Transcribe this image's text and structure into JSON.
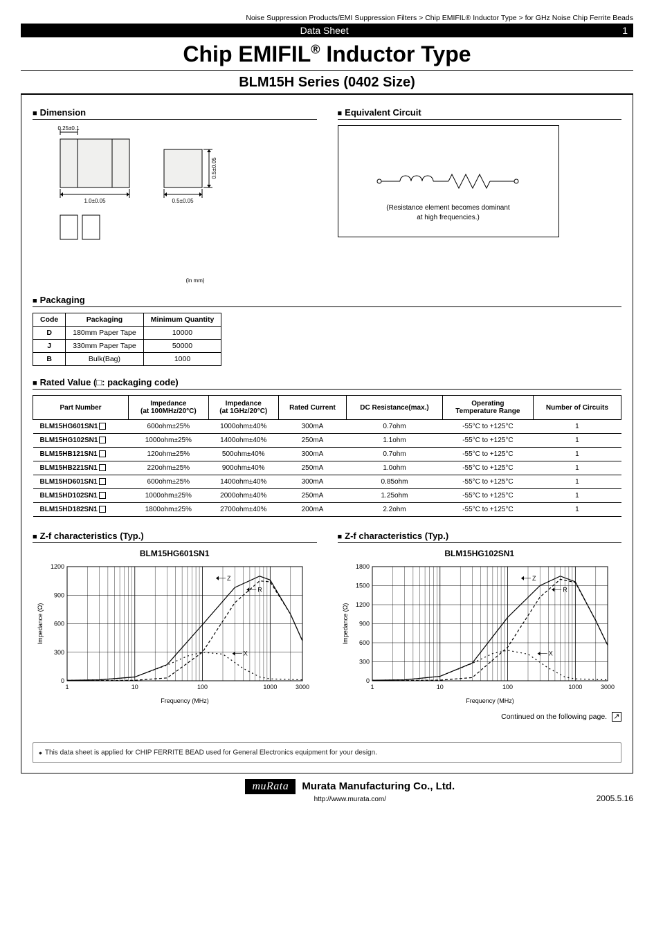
{
  "breadcrumb": "Noise Suppression Products/EMI Suppression Filters > Chip EMIFIL® Inductor Type > for GHz Noise Chip Ferrite Beads",
  "blackbar": {
    "center": "Data Sheet",
    "page": "1"
  },
  "title_before": "Chip EMIFIL",
  "title_reg": "®",
  "title_after": " Inductor Type",
  "subtitle": "BLM15H Series (0402 Size)",
  "sections": {
    "dimension": "Dimension",
    "equivalent": "Equivalent Circuit",
    "packaging": "Packaging",
    "rated": "Rated Value (□: packaging code)",
    "zf1": "Z-f characteristics (Typ.)",
    "zf2": "Z-f characteristics (Typ.)"
  },
  "dimension": {
    "top_w": "0.25±0.1",
    "main_w": "1.0±0.05",
    "side_w": "0.5±0.05",
    "side_h": "0.5±0.05",
    "unit": "(in mm)"
  },
  "equivalent": {
    "caption1": "(Resistance element becomes dominant",
    "caption2": "at high frequencies.)"
  },
  "packaging_table": {
    "columns": [
      "Code",
      "Packaging",
      "Minimum Quantity"
    ],
    "rows": [
      [
        "D",
        "180mm Paper Tape",
        "10000"
      ],
      [
        "J",
        "330mm Paper Tape",
        "50000"
      ],
      [
        "B",
        "Bulk(Bag)",
        "1000"
      ]
    ]
  },
  "rated_table": {
    "columns": [
      "Part Number",
      "Impedance\n(at 100MHz/20°C)",
      "Impedance\n(at 1GHz/20°C)",
      "Rated Current",
      "DC Resistance(max.)",
      "Operating\nTemperature Range",
      "Number of Circuits"
    ],
    "rows": [
      [
        "BLM15HG601SN1",
        "600ohm±25%",
        "1000ohm±40%",
        "300mA",
        "0.7ohm",
        "-55°C to +125°C",
        "1"
      ],
      [
        "BLM15HG102SN1",
        "1000ohm±25%",
        "1400ohm±40%",
        "250mA",
        "1.1ohm",
        "-55°C to +125°C",
        "1"
      ],
      [
        "BLM15HB121SN1",
        "120ohm±25%",
        "500ohm±40%",
        "300mA",
        "0.7ohm",
        "-55°C to +125°C",
        "1"
      ],
      [
        "BLM15HB221SN1",
        "220ohm±25%",
        "900ohm±40%",
        "250mA",
        "1.0ohm",
        "-55°C to +125°C",
        "1"
      ],
      [
        "BLM15HD601SN1",
        "600ohm±25%",
        "1400ohm±40%",
        "300mA",
        "0.85ohm",
        "-55°C to +125°C",
        "1"
      ],
      [
        "BLM15HD102SN1",
        "1000ohm±25%",
        "2000ohm±40%",
        "250mA",
        "1.25ohm",
        "-55°C to +125°C",
        "1"
      ],
      [
        "BLM15HD182SN1",
        "1800ohm±25%",
        "2700ohm±40%",
        "200mA",
        "2.2ohm",
        "-55°C to +125°C",
        "1"
      ]
    ]
  },
  "chart1": {
    "title": "BLM15HG601SN1",
    "type": "line-logx",
    "x_label": "Frequency (MHz)",
    "y_label": "Impedance (Ω)",
    "x_ticks": [
      1,
      10,
      100,
      1000,
      3000
    ],
    "y_ticks": [
      0,
      300,
      600,
      900,
      1200
    ],
    "ylim": [
      0,
      1200
    ],
    "xlim": [
      1,
      3000
    ],
    "series": {
      "Z": {
        "color": "#000000",
        "dash": "",
        "points": [
          [
            1,
            5
          ],
          [
            3,
            10
          ],
          [
            10,
            40
          ],
          [
            30,
            170
          ],
          [
            100,
            590
          ],
          [
            300,
            980
          ],
          [
            700,
            1100
          ],
          [
            1000,
            1060
          ],
          [
            2000,
            700
          ],
          [
            3000,
            420
          ]
        ]
      },
      "R": {
        "color": "#000000",
        "dash": "4,3",
        "points": [
          [
            1,
            1
          ],
          [
            10,
            5
          ],
          [
            30,
            30
          ],
          [
            100,
            300
          ],
          [
            300,
            820
          ],
          [
            700,
            1050
          ],
          [
            1000,
            1040
          ],
          [
            2000,
            700
          ],
          [
            3000,
            420
          ]
        ]
      },
      "X": {
        "color": "#000000",
        "dash": "2,4",
        "points": [
          [
            1,
            5
          ],
          [
            3,
            10
          ],
          [
            10,
            40
          ],
          [
            30,
            165
          ],
          [
            60,
            260
          ],
          [
            100,
            300
          ],
          [
            200,
            280
          ],
          [
            400,
            130
          ],
          [
            700,
            40
          ],
          [
            1000,
            20
          ],
          [
            3000,
            10
          ]
        ]
      }
    },
    "labels": {
      "Z": "Z",
      "R": "R",
      "X": "X"
    },
    "grid_color": "#000000",
    "background": "#ffffff",
    "axis_fontsize": 9
  },
  "chart2": {
    "title": "BLM15HG102SN1",
    "type": "line-logx",
    "x_label": "Frequency (MHz)",
    "y_label": "Impedance (Ω)",
    "x_ticks": [
      1,
      10,
      100,
      1000,
      3000
    ],
    "y_ticks": [
      0,
      300,
      600,
      900,
      1200,
      1500,
      1800
    ],
    "ylim": [
      0,
      1800
    ],
    "xlim": [
      1,
      3000
    ],
    "series": {
      "Z": {
        "color": "#000000",
        "dash": "",
        "points": [
          [
            1,
            8
          ],
          [
            3,
            15
          ],
          [
            10,
            70
          ],
          [
            30,
            280
          ],
          [
            100,
            1000
          ],
          [
            300,
            1500
          ],
          [
            600,
            1650
          ],
          [
            1000,
            1560
          ],
          [
            2000,
            950
          ],
          [
            3000,
            560
          ]
        ]
      },
      "R": {
        "color": "#000000",
        "dash": "4,3",
        "points": [
          [
            1,
            1
          ],
          [
            10,
            10
          ],
          [
            30,
            50
          ],
          [
            100,
            530
          ],
          [
            300,
            1320
          ],
          [
            600,
            1600
          ],
          [
            1000,
            1550
          ],
          [
            2000,
            950
          ],
          [
            3000,
            560
          ]
        ]
      },
      "X": {
        "color": "#000000",
        "dash": "2,4",
        "points": [
          [
            1,
            8
          ],
          [
            3,
            15
          ],
          [
            10,
            70
          ],
          [
            30,
            275
          ],
          [
            60,
            430
          ],
          [
            100,
            480
          ],
          [
            200,
            420
          ],
          [
            400,
            200
          ],
          [
            700,
            60
          ],
          [
            1000,
            30
          ],
          [
            3000,
            15
          ]
        ]
      }
    },
    "labels": {
      "Z": "Z",
      "R": "R",
      "X": "X"
    },
    "grid_color": "#000000",
    "background": "#ffffff",
    "axis_fontsize": 9
  },
  "continued": "Continued on the following page.",
  "footnote": "This data sheet is applied for CHIP FERRITE BEAD used for General Electronics equipment for your design.",
  "footer": {
    "logo_text": "muRata",
    "company": "Murata Manufacturing Co., Ltd.",
    "url": "http://www.murata.com/",
    "date": "2005.5.16"
  }
}
